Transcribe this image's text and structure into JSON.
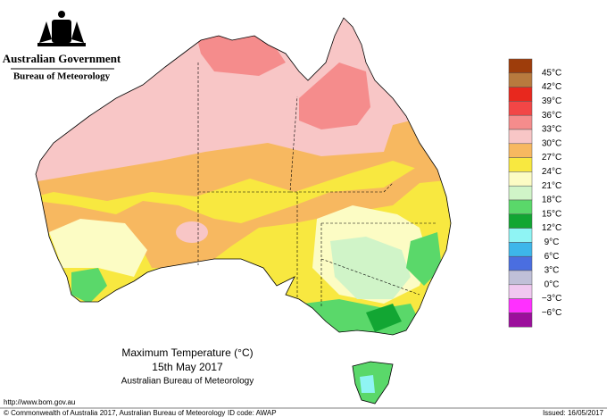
{
  "header": {
    "government": "Australian Government",
    "bureau": "Bureau of Meteorology"
  },
  "title": {
    "line1": "Maximum Temperature (°C)",
    "line2": "15th May 2017",
    "line3": "Australian Bureau of Meteorology"
  },
  "legend": {
    "labels": [
      "45°C",
      "42°C",
      "39°C",
      "36°C",
      "33°C",
      "30°C",
      "27°C",
      "24°C",
      "21°C",
      "18°C",
      "15°C",
      "12°C",
      "9°C",
      "6°C",
      "3°C",
      "0°C",
      "−3°C",
      "−6°C"
    ],
    "colors": [
      "#9e3d0b",
      "#b87a3e",
      "#e8281e",
      "#f24646",
      "#f58c8c",
      "#f8c6c6",
      "#f7b860",
      "#f8e840",
      "#fcfcc4",
      "#d0f4c8",
      "#5ad86a",
      "#12a633",
      "#8ff4f4",
      "#3db6ea",
      "#4a6ee0",
      "#c0c0d8",
      "#f0c8f0",
      "#ff30ff",
      "#9c0f9c"
    ]
  },
  "footer": {
    "url": "http://www.bom.gov.au",
    "copyright": "© Commonwealth of Australia 2017, Australian Bureau of Meteorology",
    "id": "ID code: AWAP",
    "issued": "Issued: 16/05/2017"
  }
}
